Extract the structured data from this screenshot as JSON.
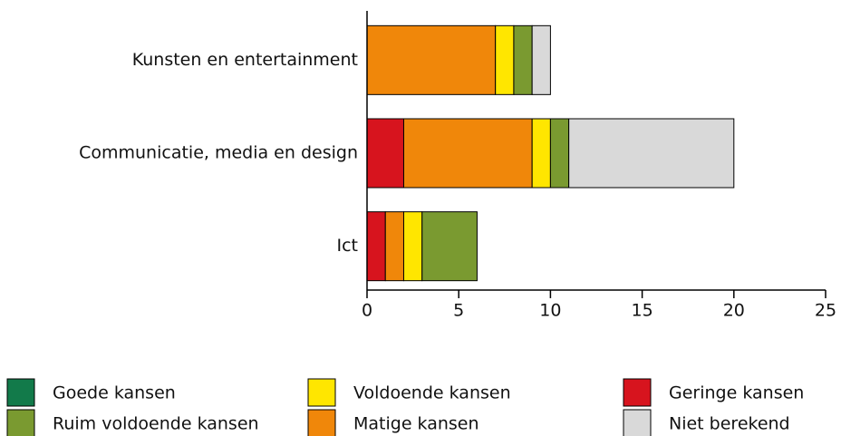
{
  "chart_data": {
    "type": "stacked-barh",
    "categories": [
      "Kunsten en entertainment",
      "Communicatie, media en design",
      "Ict"
    ],
    "series": [
      {
        "name": "Geringe kansen",
        "color": "#d7141e",
        "values": [
          0,
          2,
          1
        ]
      },
      {
        "name": "Matige kansen",
        "color": "#f0870a",
        "values": [
          7,
          7,
          1
        ]
      },
      {
        "name": "Voldoende kansen",
        "color": "#ffe600",
        "values": [
          1,
          1,
          1
        ]
      },
      {
        "name": "Ruim voldoende kansen",
        "color": "#7a9a30",
        "values": [
          1,
          1,
          3
        ]
      },
      {
        "name": "Goede kansen",
        "color": "#127a4a",
        "values": [
          0,
          0,
          0
        ]
      },
      {
        "name": "Niet berekend",
        "color": "#d9d9d9",
        "values": [
          1,
          9,
          0
        ]
      }
    ],
    "xlim": [
      0,
      25
    ],
    "xticks": [
      0,
      5,
      10,
      15,
      20,
      25
    ]
  }
}
